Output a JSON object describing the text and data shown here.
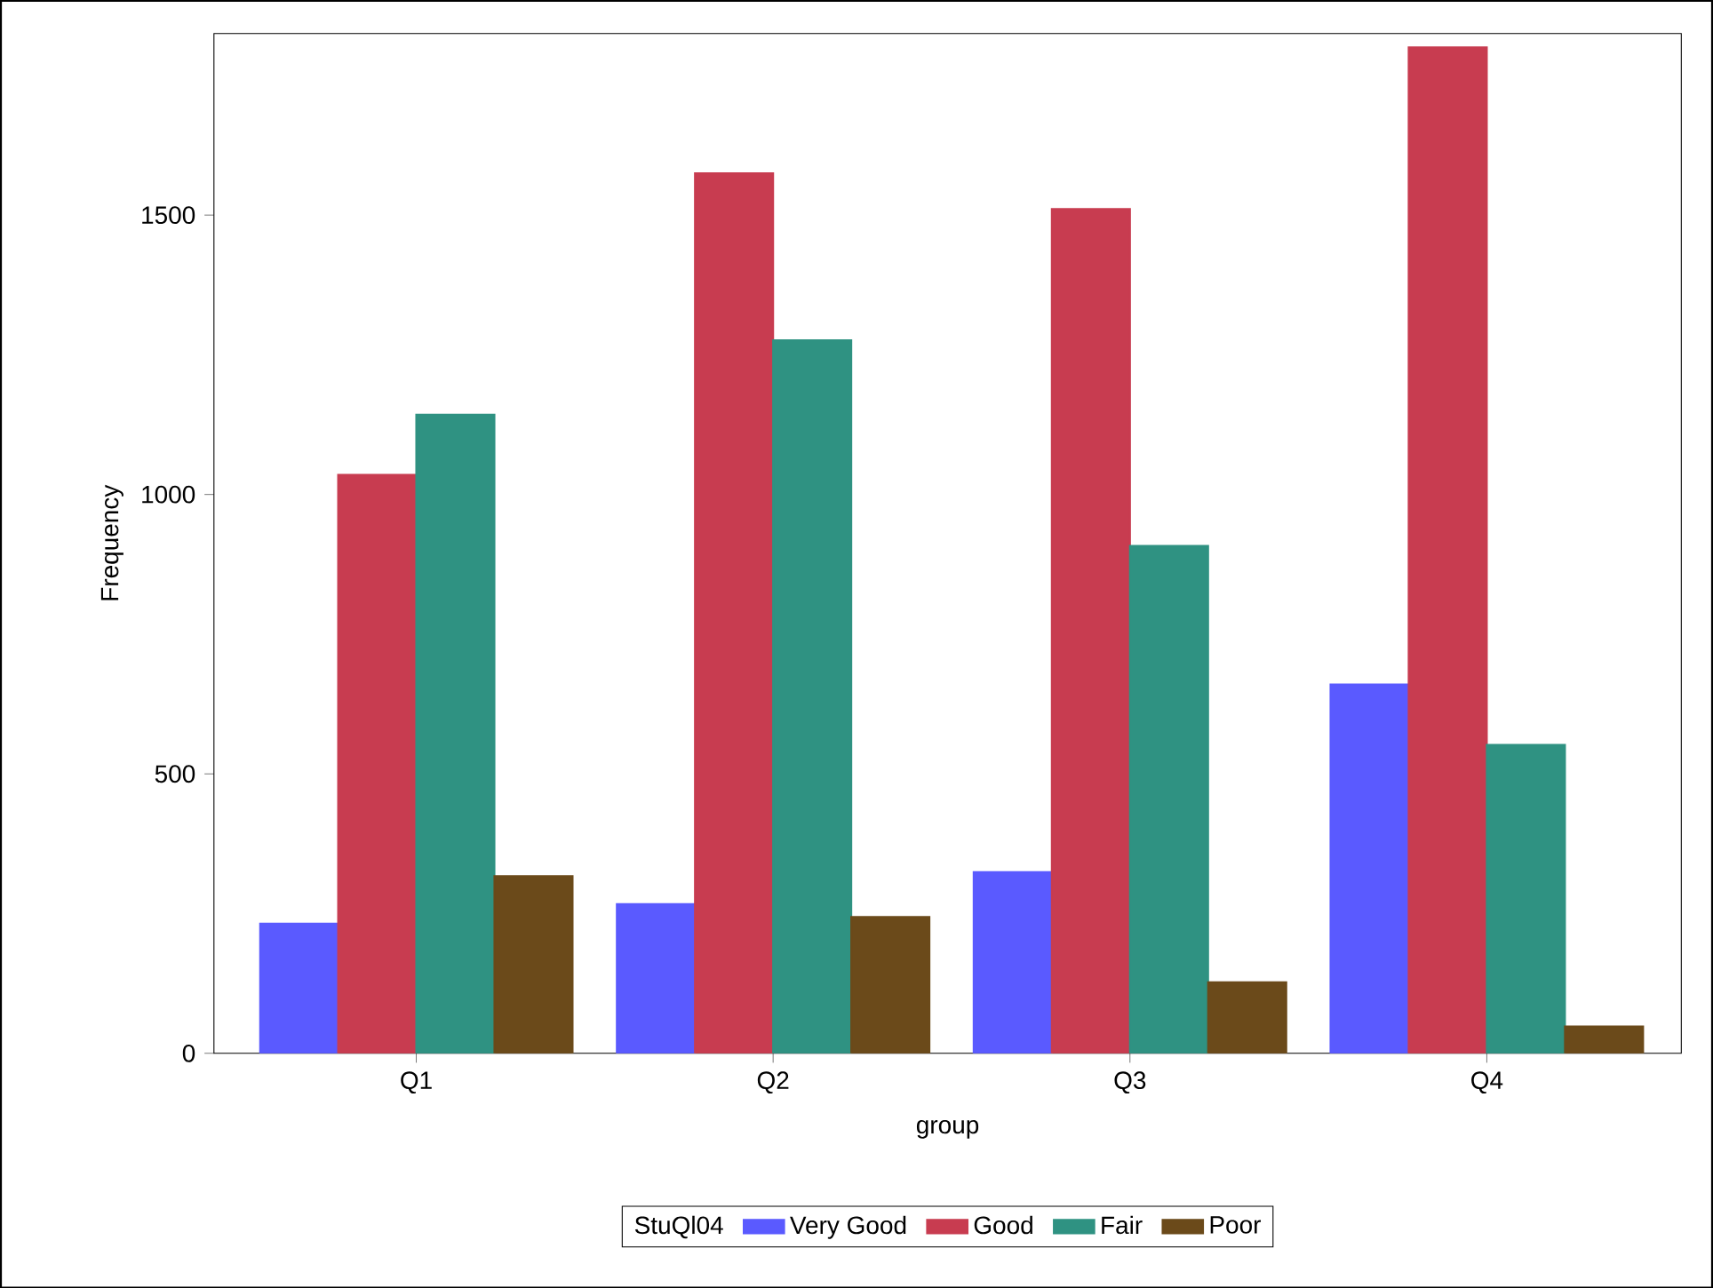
{
  "chart_data": {
    "type": "bar",
    "xlabel": "group",
    "ylabel": "Frequency",
    "legend_title": "StuQl04",
    "categories": [
      "Q1",
      "Q2",
      "Q3",
      "Q4"
    ],
    "series": [
      {
        "name": "Very Good",
        "color": "#5a5aff",
        "values": [
          232,
          267,
          324,
          660
        ]
      },
      {
        "name": "Good",
        "color": "#c83c50",
        "values": [
          1035,
          1575,
          1511,
          1800
        ]
      },
      {
        "name": "Fair",
        "color": "#2f9282",
        "values": [
          1143,
          1276,
          908,
          552
        ]
      },
      {
        "name": "Poor",
        "color": "#6b4a1a",
        "values": [
          317,
          244,
          127,
          48
        ]
      }
    ],
    "ylim": [
      0,
      1825
    ],
    "yticks": [
      0,
      500,
      1000,
      1500
    ],
    "grid": false,
    "legend": "bottom"
  }
}
